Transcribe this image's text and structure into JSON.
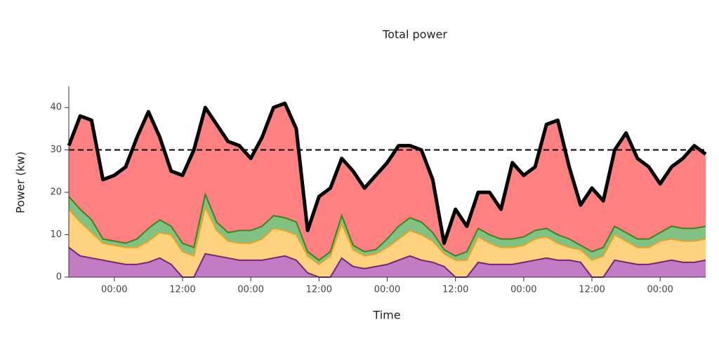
{
  "chart_data": {
    "type": "stacked_area",
    "title": "Total power",
    "x_label": "Time",
    "y_label": "Power (kw)",
    "x": [
      0,
      2,
      4,
      6,
      8,
      10,
      12,
      14,
      16,
      18,
      20,
      22,
      24,
      26,
      28,
      30,
      32,
      34,
      36,
      38,
      40,
      42,
      44,
      46,
      48,
      50,
      52,
      54,
      56,
      58,
      60,
      62,
      64,
      66,
      68,
      70,
      72,
      74,
      76,
      78,
      80,
      82,
      84,
      86,
      88,
      90,
      92,
      94,
      96,
      98,
      100,
      102,
      104,
      106,
      108,
      110,
      112
    ],
    "xlim": [
      0,
      112
    ],
    "xticks": [
      {
        "value": 8,
        "label": "00:00"
      },
      {
        "value": 20,
        "label": "12:00"
      },
      {
        "value": 32,
        "label": "00:00"
      },
      {
        "value": 44,
        "label": "12:00"
      },
      {
        "value": 56,
        "label": "00:00"
      },
      {
        "value": 68,
        "label": "12:00"
      },
      {
        "value": 80,
        "label": "00:00"
      },
      {
        "value": 92,
        "label": "12:00"
      },
      {
        "value": 104,
        "label": "00:00"
      }
    ],
    "ylim": [
      0,
      45
    ],
    "yticks": [
      0,
      10,
      20,
      30,
      40
    ],
    "threshold": 30,
    "outline_color": "#000000",
    "series": [
      {
        "color": "#c27cc4",
        "stroke": "#7a1f88",
        "values": [
          7,
          5,
          4.5,
          4,
          3.5,
          3,
          3,
          3.5,
          4.5,
          3,
          0,
          0,
          5.5,
          5,
          4.5,
          4,
          4,
          4,
          4.5,
          5,
          4,
          1,
          0,
          0,
          4.5,
          2.5,
          2,
          2.5,
          3,
          4,
          5,
          4,
          3.5,
          2.5,
          0,
          0,
          3.5,
          3,
          3,
          3,
          3.5,
          4,
          4.5,
          4,
          4,
          3.5,
          0,
          0,
          4,
          3.5,
          3,
          3,
          3.5,
          4,
          3.5,
          3.5,
          4
        ]
      },
      {
        "color": "#ffd27f",
        "stroke": "#f0a020",
        "values": [
          9,
          8,
          6,
          4,
          4,
          4,
          4,
          5,
          6,
          7,
          6,
          5,
          11,
          6,
          4,
          4,
          4,
          5,
          7,
          6,
          6,
          4,
          3,
          5,
          8,
          4,
          3,
          3,
          4,
          5,
          6,
          6,
          5,
          3,
          4,
          4,
          6,
          5,
          4,
          4,
          4,
          5,
          5,
          4,
          3,
          3,
          4,
          5,
          6,
          5,
          4,
          4,
          5,
          5,
          5,
          5,
          5
        ]
      },
      {
        "color": "#82c182",
        "stroke": "#2e8b1e",
        "values": [
          3,
          3,
          3,
          1,
          1,
          1,
          2,
          3,
          3,
          2,
          2,
          2,
          3,
          2,
          2,
          3,
          3,
          3,
          3,
          3,
          3,
          1,
          1,
          1,
          2,
          1,
          1,
          1,
          2,
          3,
          3,
          3,
          2,
          1,
          1,
          2,
          2,
          2,
          2,
          2,
          2,
          2,
          2,
          2,
          2,
          1,
          2,
          2,
          2,
          2,
          2,
          2,
          2,
          3,
          3,
          3,
          3
        ]
      },
      {
        "color": "#ff8080",
        "stroke": "#ff8080",
        "values": [
          12,
          22,
          23.5,
          14,
          15.5,
          18,
          24,
          27.5,
          19.5,
          13,
          16,
          23,
          20.5,
          23,
          21.5,
          20,
          17,
          21,
          25.5,
          27,
          22,
          5,
          15,
          15,
          13.5,
          17.5,
          15,
          17.5,
          18,
          19,
          17,
          17,
          12.5,
          1.5,
          11,
          6,
          8.5,
          10,
          7,
          18,
          14.5,
          15,
          24.5,
          27,
          17,
          9.5,
          15,
          11,
          18,
          23.5,
          19,
          17,
          11.5,
          14,
          16.5,
          19.5,
          17
        ]
      }
    ]
  }
}
